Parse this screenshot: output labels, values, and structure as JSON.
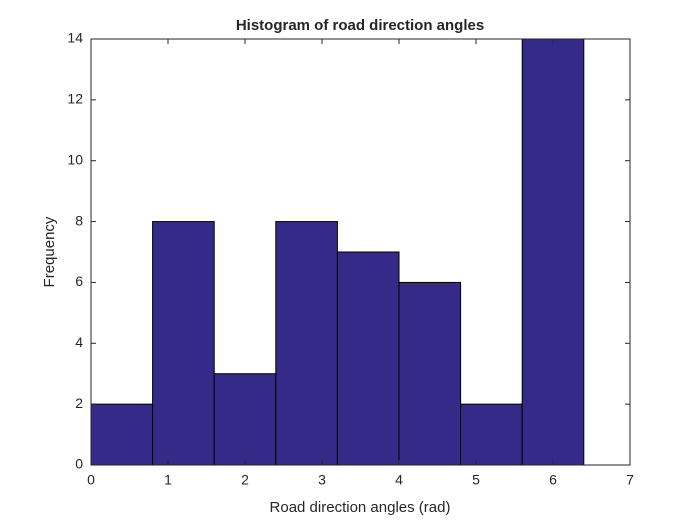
{
  "chart_data": {
    "type": "histogram",
    "title": "Histogram of road direction angles",
    "x_label": "Road direction angles (rad)",
    "y_label": "Frequency",
    "bins": [
      0,
      0.8,
      1.6,
      2.4,
      3.2,
      4,
      4.8,
      5.6,
      6.4
    ],
    "values": [
      2,
      8,
      3,
      8,
      7,
      6,
      2,
      14
    ],
    "color": "#352a87",
    "xlim": [
      0,
      7
    ],
    "xticks": [
      0,
      1,
      2,
      3,
      4,
      5,
      6,
      7
    ],
    "ylim": [
      0,
      14
    ],
    "yticks": [
      0,
      2,
      4,
      6,
      8,
      10,
      12,
      14
    ],
    "grid": false
  }
}
